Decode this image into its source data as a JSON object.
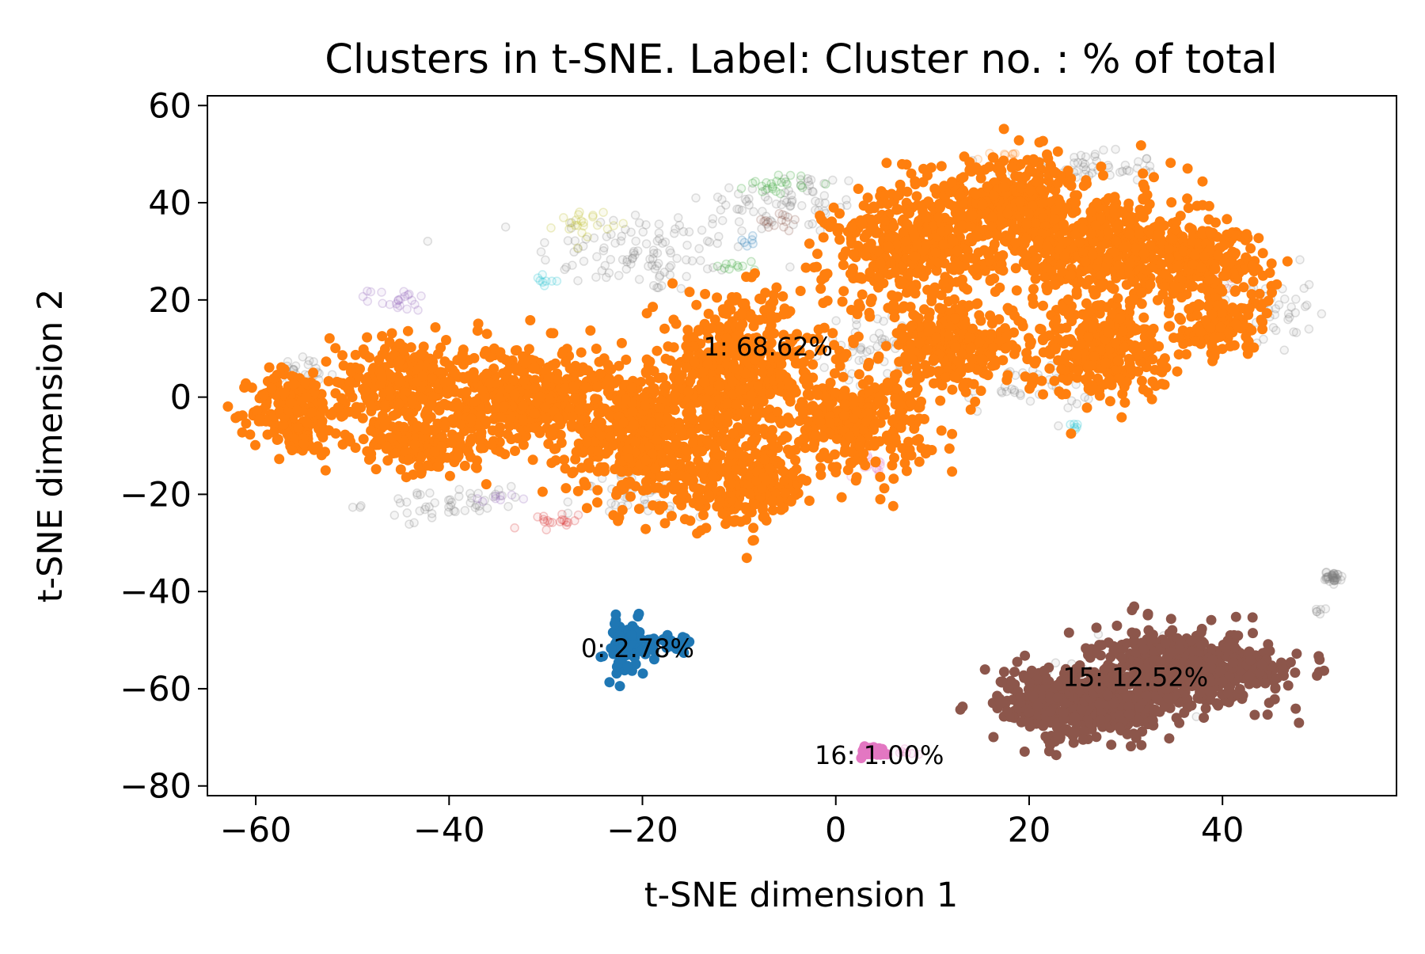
{
  "chart_data": {
    "type": "scatter",
    "title": "Clusters in t-SNE. Label: Cluster no. : % of total",
    "xlabel": "t-SNE dimension 1",
    "ylabel": "t-SNE dimension 2",
    "xlim": [
      -65,
      58
    ],
    "ylim": [
      -82,
      62
    ],
    "x_ticks": [
      -60,
      -40,
      -20,
      0,
      20,
      40
    ],
    "y_ticks": [
      -80,
      -60,
      -40,
      -20,
      0,
      20,
      40,
      60
    ],
    "x_tick_labels": [
      "−60",
      "−40",
      "−20",
      "0",
      "20",
      "40"
    ],
    "y_tick_labels": [
      "−80",
      "−60",
      "−40",
      "−20",
      "0",
      "20",
      "40",
      "60"
    ],
    "grid": false,
    "colors": {
      "cluster_0": "#1f77b4",
      "cluster_1": "#ff7f0e",
      "cluster_15": "#8c564b",
      "cluster_16": "#e377c2",
      "background": "#7f7f7f",
      "faded_green": "#2ca02c",
      "faded_purple": "#9467bd",
      "faded_red": "#d62728",
      "faded_olive": "#bcbd22",
      "faded_cyan": "#17becf"
    },
    "highlighted_clusters": [
      {
        "id": "0",
        "label": "0: 2.78%",
        "label_position": [
          -20.5,
          -52
        ],
        "color": "#1f77b4",
        "blobs": [
          {
            "cx": -21.5,
            "cy": -52,
            "rx": 2.2,
            "ry": 5.5,
            "n": 70
          },
          {
            "cx": -17.5,
            "cy": -50,
            "rx": 3.5,
            "ry": 1.8,
            "n": 30
          }
        ]
      },
      {
        "id": "1",
        "label": "1: 68.62%",
        "label_position": [
          -7,
          10
        ],
        "color": "#ff7f0e",
        "blobs": [
          {
            "cx": -56,
            "cy": -3,
            "rx": 4,
            "ry": 8,
            "n": 220
          },
          {
            "cx": -45,
            "cy": 3,
            "rx": 6,
            "ry": 8,
            "n": 280
          },
          {
            "cx": -43,
            "cy": -10,
            "rx": 6,
            "ry": 5,
            "n": 160
          },
          {
            "cx": -32,
            "cy": 0,
            "rx": 8,
            "ry": 10,
            "n": 460
          },
          {
            "cx": -20,
            "cy": -8,
            "rx": 7,
            "ry": 12,
            "n": 420
          },
          {
            "cx": -10,
            "cy": 5,
            "rx": 8,
            "ry": 14,
            "n": 520
          },
          {
            "cx": -10,
            "cy": -18,
            "rx": 7,
            "ry": 8,
            "n": 260
          },
          {
            "cx": 2,
            "cy": -5,
            "rx": 7,
            "ry": 9,
            "n": 300
          },
          {
            "cx": 8,
            "cy": 30,
            "rx": 8,
            "ry": 12,
            "n": 420
          },
          {
            "cx": 12,
            "cy": 10,
            "rx": 6,
            "ry": 8,
            "n": 260
          },
          {
            "cx": 18,
            "cy": 40,
            "rx": 8,
            "ry": 9,
            "n": 360
          },
          {
            "cx": 28,
            "cy": 30,
            "rx": 9,
            "ry": 12,
            "n": 480
          },
          {
            "cx": 27,
            "cy": 10,
            "rx": 7,
            "ry": 9,
            "n": 300
          },
          {
            "cx": 38,
            "cy": 28,
            "rx": 6,
            "ry": 7,
            "n": 240
          },
          {
            "cx": 40,
            "cy": 15,
            "rx": 4,
            "ry": 5,
            "n": 120
          }
        ]
      },
      {
        "id": "15",
        "label": "15: 12.52%",
        "label_position": [
          31,
          -58
        ],
        "color": "#8c564b",
        "blobs": [
          {
            "cx": 26,
            "cy": -63,
            "rx": 8,
            "ry": 7,
            "n": 520
          },
          {
            "cx": 36,
            "cy": -56,
            "rx": 8,
            "ry": 7,
            "n": 520
          },
          {
            "cx": 43,
            "cy": -56,
            "rx": 3,
            "ry": 3,
            "n": 80
          }
        ]
      },
      {
        "id": "16",
        "label": "16: 1.00%",
        "label_position": [
          4.5,
          -74
        ],
        "color": "#e377c2",
        "blobs": [
          {
            "cx": 4,
            "cy": -73,
            "rx": 1.3,
            "ry": 0.9,
            "n": 45
          }
        ]
      }
    ],
    "faded_clusters": [
      {
        "color": "#7f7f7f",
        "blobs": [
          {
            "cx": -20,
            "cy": 30,
            "rx": 10,
            "ry": 8,
            "n": 110
          },
          {
            "cx": -5,
            "cy": 40,
            "rx": 8,
            "ry": 6,
            "n": 70
          },
          {
            "cx": 25,
            "cy": 47,
            "rx": 8,
            "ry": 3,
            "n": 60
          },
          {
            "cx": 45,
            "cy": 18,
            "rx": 4,
            "ry": 8,
            "n": 50
          },
          {
            "cx": 5,
            "cy": 10,
            "rx": 6,
            "ry": 6,
            "n": 60
          },
          {
            "cx": 20,
            "cy": 2,
            "rx": 6,
            "ry": 5,
            "n": 40
          },
          {
            "cx": -40,
            "cy": -22,
            "rx": 8,
            "ry": 3,
            "n": 50
          },
          {
            "cx": -20,
            "cy": -20,
            "rx": 6,
            "ry": 4,
            "n": 40
          },
          {
            "cx": -55,
            "cy": 5,
            "rx": 3,
            "ry": 3,
            "n": 25
          },
          {
            "cx": 51.5,
            "cy": -37,
            "rx": 0.8,
            "ry": 1.0,
            "n": 35
          },
          {
            "cx": 50,
            "cy": -44,
            "rx": 0.4,
            "ry": 0.6,
            "n": 6
          },
          {
            "cx": 30,
            "cy": -58,
            "rx": 10,
            "ry": 8,
            "n": 40
          }
        ]
      },
      {
        "color": "#2ca02c",
        "blobs": [
          {
            "cx": -6,
            "cy": 44,
            "rx": 3,
            "ry": 2,
            "n": 22
          },
          {
            "cx": -10,
            "cy": 27,
            "rx": 2,
            "ry": 1.5,
            "n": 10
          }
        ]
      },
      {
        "color": "#bcbd22",
        "blobs": [
          {
            "cx": -26,
            "cy": 36,
            "rx": 2.5,
            "ry": 2.5,
            "n": 22
          }
        ]
      },
      {
        "color": "#9467bd",
        "blobs": [
          {
            "cx": -45,
            "cy": 20,
            "rx": 3,
            "ry": 2,
            "n": 22
          },
          {
            "cx": -35,
            "cy": -21,
            "rx": 2,
            "ry": 1,
            "n": 8
          }
        ]
      },
      {
        "color": "#d62728",
        "blobs": [
          {
            "cx": -30,
            "cy": -26,
            "rx": 3,
            "ry": 2,
            "n": 18
          },
          {
            "cx": 39,
            "cy": 24,
            "rx": 2,
            "ry": 1,
            "n": 8
          }
        ]
      },
      {
        "color": "#17becf",
        "blobs": [
          {
            "cx": -30,
            "cy": 24,
            "rx": 1.5,
            "ry": 1.5,
            "n": 8
          },
          {
            "cx": 24.5,
            "cy": -6,
            "rx": 1,
            "ry": 0.8,
            "n": 6
          }
        ]
      },
      {
        "color": "#8c564b",
        "blobs": [
          {
            "cx": -6,
            "cy": 36,
            "rx": 3,
            "ry": 2,
            "n": 14
          }
        ]
      },
      {
        "color": "#1f77b4",
        "blobs": [
          {
            "cx": -9,
            "cy": 32,
            "rx": 1,
            "ry": 1,
            "n": 6
          }
        ]
      },
      {
        "color": "#e377c2",
        "blobs": [
          {
            "cx": 4,
            "cy": -14,
            "rx": 2.5,
            "ry": 2,
            "n": 14
          },
          {
            "cx": 7,
            "cy": -73,
            "rx": 1.5,
            "ry": 1,
            "n": 6
          }
        ]
      },
      {
        "color": "#ff7f0e",
        "blobs": [
          {
            "cx": 17,
            "cy": 50,
            "rx": 2,
            "ry": 1,
            "n": 8
          }
        ]
      }
    ]
  }
}
